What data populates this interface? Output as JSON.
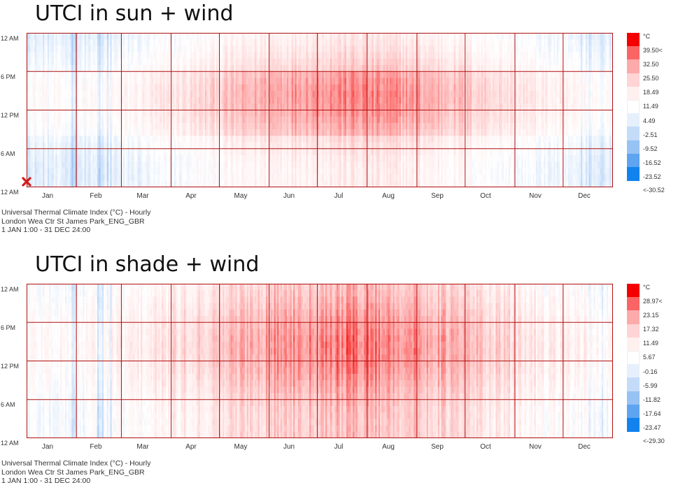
{
  "chart_data": [
    {
      "type": "heatmap",
      "title": "UTCI in sun + wind",
      "y_tick_labels": [
        "12 AM",
        "6 PM",
        "12 PM",
        "6 AM",
        "12 AM"
      ],
      "x_tick_labels": [
        "Jan",
        "Feb",
        "Mar",
        "Apr",
        "May",
        "Jun",
        "Jul",
        "Aug",
        "Sep",
        "Oct",
        "Nov",
        "Dec"
      ],
      "legend_unit": "°C",
      "legend_labels": [
        "39.50<",
        "32.50",
        "25.50",
        "18.49",
        "11.49",
        "4.49",
        "-2.51",
        "-9.52",
        "-16.52",
        "-23.52",
        "<-30.52"
      ],
      "value_range": [
        -30.52,
        39.5
      ],
      "legend_colors": [
        "#f50000",
        "#fa6464",
        "#fdaaaa",
        "#fed4d4",
        "#fff0f0",
        "#ffffff",
        "#e6f0fc",
        "#c4dcf8",
        "#96c2f4",
        "#5ea4f0",
        "#1282ee"
      ],
      "caption": [
        "Universal Thermal Climate Index (°C) - Hourly",
        "London Wea Ctr St James Park_ENG_GBR",
        "1 JAN 1:00 - 31 DEC 24:00"
      ],
      "grid": true,
      "grid_color": "#b01010",
      "hour_grid_values": [
        0,
        6,
        12,
        18,
        24
      ],
      "month_boundaries_day": [
        0,
        31,
        59,
        90,
        120,
        151,
        181,
        212,
        243,
        273,
        304,
        334,
        365
      ]
    },
    {
      "type": "heatmap",
      "title": "UTCI in shade + wind",
      "y_tick_labels": [
        "12 AM",
        "6 PM",
        "12 PM",
        "6 AM",
        "12 AM"
      ],
      "x_tick_labels": [
        "Jan",
        "Feb",
        "Mar",
        "Apr",
        "May",
        "Jun",
        "Jul",
        "Aug",
        "Sep",
        "Oct",
        "Nov",
        "Dec"
      ],
      "legend_unit": "°C",
      "legend_labels": [
        "28.97<",
        "23.15",
        "17.32",
        "11.49",
        "5.67",
        "-0.16",
        "-5.99",
        "-11.82",
        "-17.64",
        "-23.47",
        "<-29.30"
      ],
      "value_range": [
        -29.3,
        28.97
      ],
      "legend_colors": [
        "#f50000",
        "#fa6464",
        "#fdaaaa",
        "#fed4d4",
        "#fff0f0",
        "#ffffff",
        "#e6f0fc",
        "#c4dcf8",
        "#96c2f4",
        "#5ea4f0",
        "#1282ee"
      ],
      "caption": [
        "Universal Thermal Climate Index (°C) - Hourly",
        "London Wea Ctr St James Park_ENG_GBR",
        "1 JAN 1:00 - 31 DEC 24:00"
      ],
      "grid": true,
      "grid_color": "#b01010",
      "hour_grid_values": [
        0,
        6,
        12,
        18,
        24
      ],
      "month_boundaries_day": [
        0,
        31,
        59,
        90,
        120,
        151,
        181,
        212,
        243,
        273,
        304,
        334,
        365
      ]
    }
  ]
}
